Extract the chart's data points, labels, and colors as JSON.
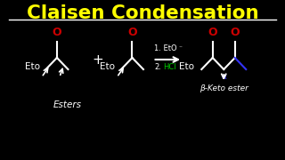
{
  "title": "Claisen Condensation",
  "title_color": "#FFFF00",
  "bg_color": "#000000",
  "esters_label": "Esters",
  "product_name": "β-Keto ester",
  "carbonyl_color": "#CC0000",
  "white_color": "#FFFFFF",
  "blue_color": "#3333FF",
  "green_color": "#00CC00",
  "yellow_color": "#FFFF00",
  "reagent1": "1. EtO",
  "reagent2": "2.",
  "reagent2b": "HCl",
  "superscript": "⁻"
}
